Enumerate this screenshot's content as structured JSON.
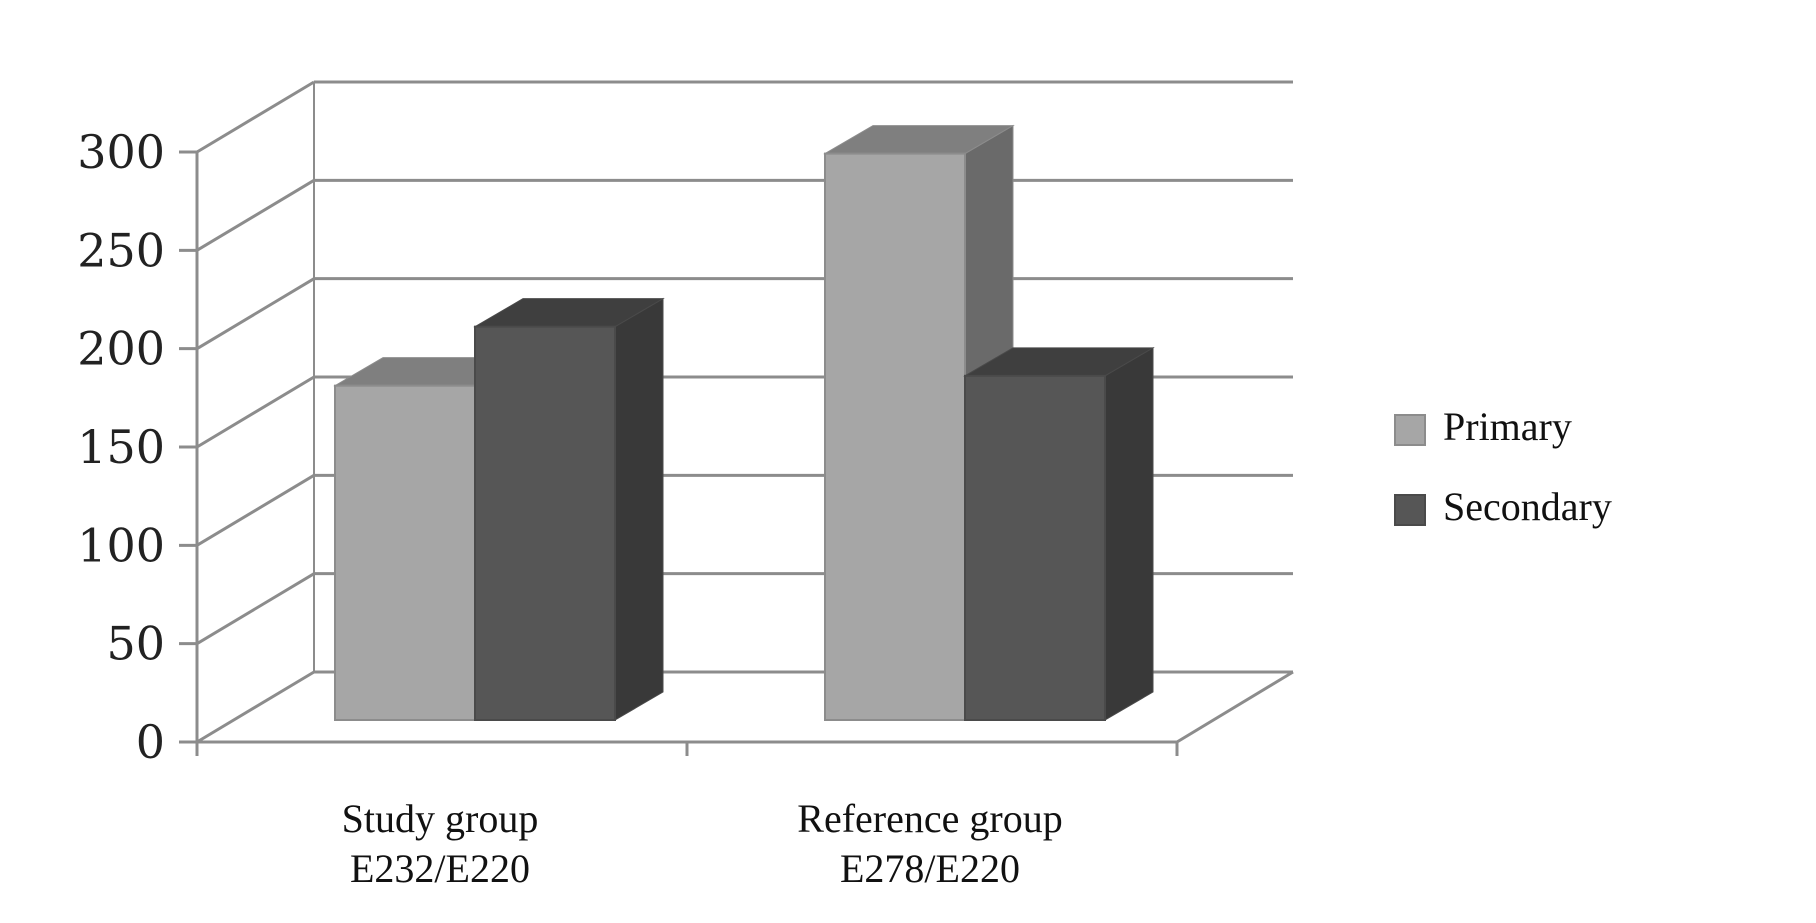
{
  "chart_data": {
    "type": "bar",
    "title": "",
    "xlabel": "",
    "ylabel": "",
    "ylim": [
      0,
      300
    ],
    "yticks": [
      0,
      50,
      100,
      150,
      200,
      250,
      300
    ],
    "categories": [
      [
        "Study group",
        "E232/E220"
      ],
      [
        "Reference group",
        "E278/E220"
      ]
    ],
    "series": [
      {
        "name": "Primary",
        "values": [
          170,
          288
        ]
      },
      {
        "name": "Secondary",
        "values": [
          200,
          175
        ]
      }
    ],
    "grid": true,
    "legend": "right",
    "style": "3d-clustered-column"
  },
  "colors": {
    "Primary": {
      "front": "#a6a6a6",
      "top": "#7f7f7f",
      "side": "#6a6a6a",
      "edge": "#8c8c8c"
    },
    "Secondary": {
      "front": "#565656",
      "top": "#3f3f3f",
      "side": "#393939",
      "edge": "#4a4a4a"
    },
    "grid": "#8c8c8c",
    "axis": "#8c8c8c"
  }
}
